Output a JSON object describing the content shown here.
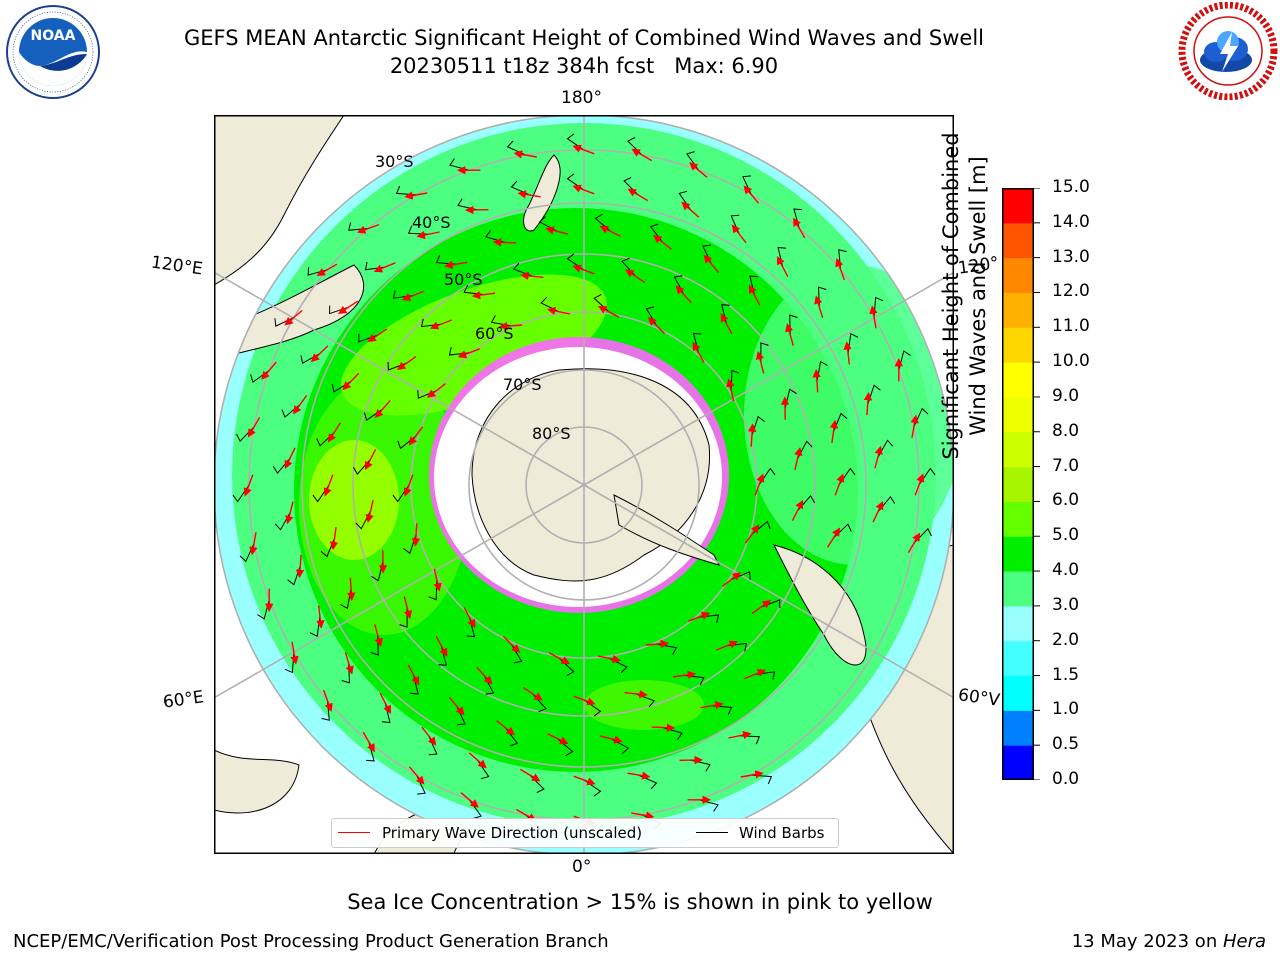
{
  "header": {
    "title_line1": "GEFS MEAN Antarctic Significant Height of Combined Wind Waves and Swell",
    "title_line2": "20230511 t18z 384h fcst   Max: 6.90"
  },
  "logos": {
    "noaa": {
      "text": "NOAA",
      "ring_text": "NATIONAL OCEANIC AND ATMOSPHERIC ADMINISTRATION · U.S. DEPARTMENT OF COMMERCE"
    },
    "nws": {
      "ring_text": "NATIONAL WEATHER SERVICE"
    }
  },
  "map": {
    "projection": "south-polar-stereographic",
    "longitude_labels": {
      "top": "180°",
      "bottom": "0°",
      "upper_left": "120°E",
      "lower_left": "60°E",
      "upper_right": "120°",
      "lower_right": "60°V"
    },
    "latitude_labels": [
      "30°S",
      "40°S",
      "50°S",
      "60°S",
      "70°S",
      "80°S"
    ],
    "colors": {
      "land": "#efebd9",
      "ocean_low": "#99ffff",
      "ocean_mid": "#4dff80",
      "ocean_high": "#00ee00",
      "sea_ice": "#ff33ff",
      "arrow": "#ff0000",
      "barb": "#000000"
    }
  },
  "colorbar": {
    "label_line1": "Significant Height of Combined",
    "label_line2": "Wind Waves and Swell [m]",
    "levels": [
      "0.0",
      "0.5",
      "1.0",
      "1.5",
      "2.0",
      "3.0",
      "4.0",
      "5.0",
      "6.0",
      "7.0",
      "8.0",
      "9.0",
      "10.0",
      "11.0",
      "12.0",
      "13.0",
      "14.0",
      "15.0"
    ],
    "colors": [
      "#0000ff",
      "#0080ff",
      "#00ffff",
      "#44ffff",
      "#99ffff",
      "#4dff80",
      "#00ee00",
      "#66ff00",
      "#a8f500",
      "#ccff00",
      "#eeff00",
      "#ffff00",
      "#ffd700",
      "#ffb000",
      "#ff8800",
      "#ff5500",
      "#ff0000"
    ]
  },
  "legend": {
    "primary_wave": "Primary Wave Direction (unscaled)",
    "wind_barbs": "Wind Barbs"
  },
  "caption": "Sea Ice Concentration > 15% is shown in pink to yellow",
  "footer": {
    "left": "NCEP/EMC/Verification Post Processing Product Generation Branch",
    "right_date": "13 May 2023 on ",
    "right_host": "Hera"
  }
}
